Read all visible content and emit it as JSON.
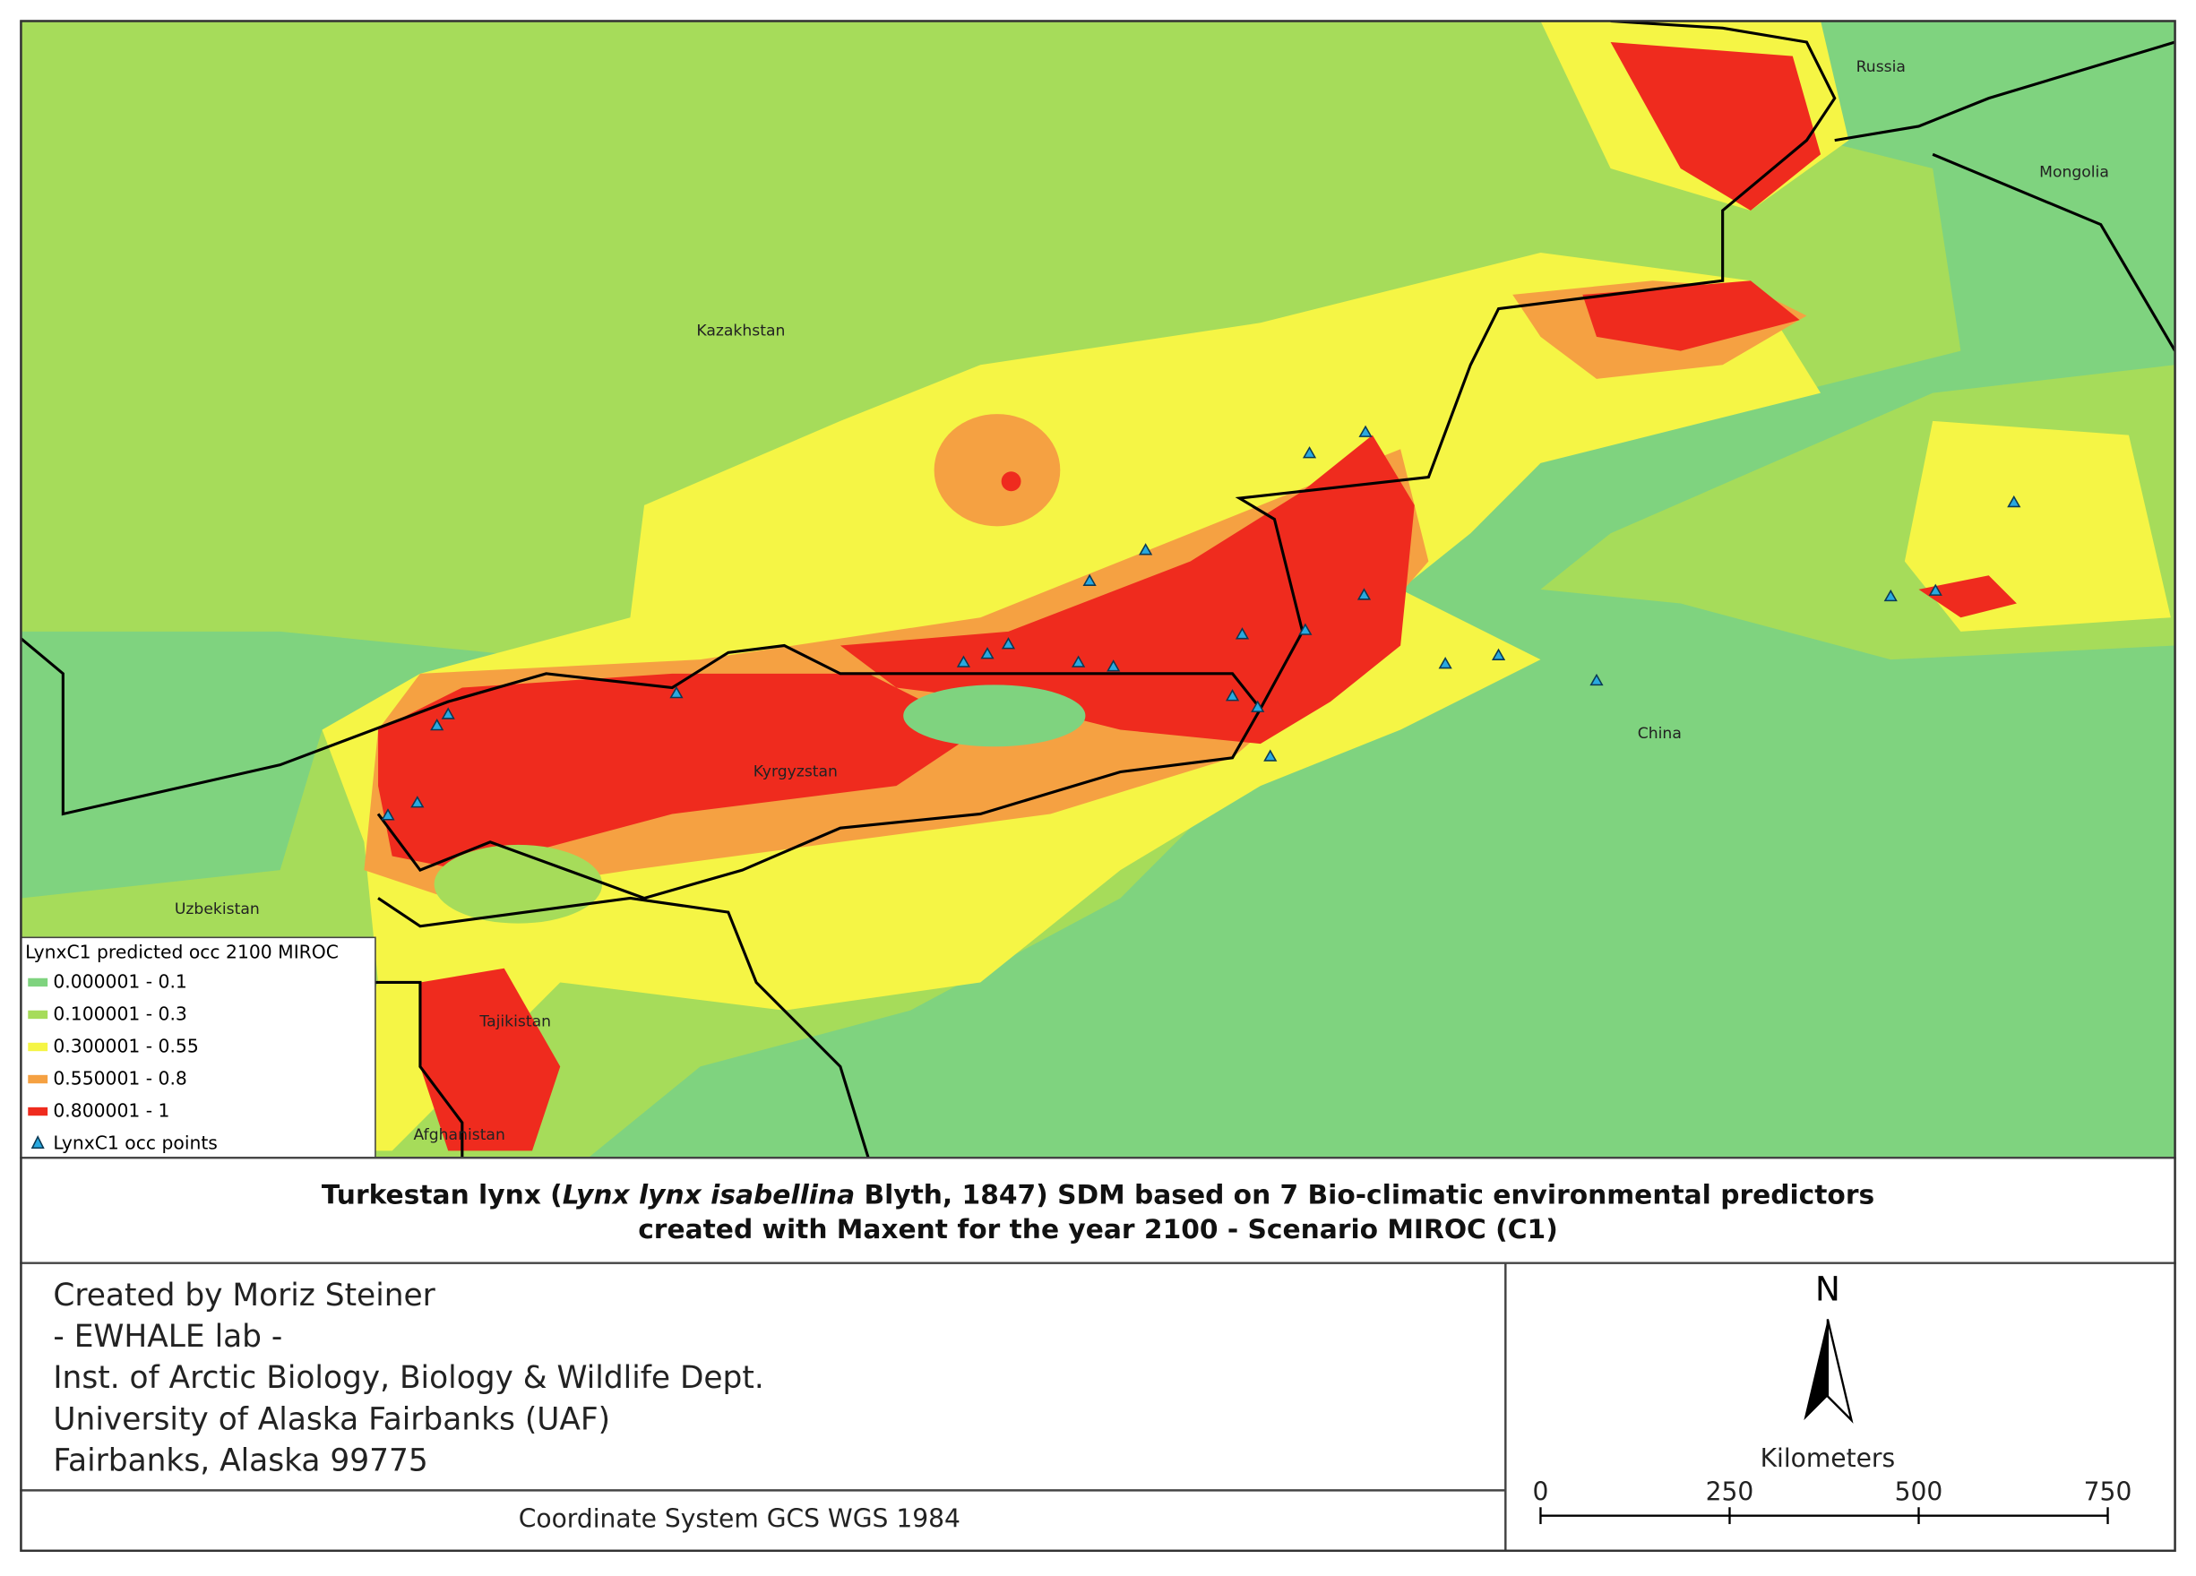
{
  "map": {
    "places": [
      "Russia",
      "Mongolia",
      "Kazakhstan",
      "China",
      "Kyrgyzstan",
      "Uzbekistan",
      "Tajikistan",
      "Afghanistan"
    ],
    "legend": {
      "title": "LynxC1 predicted occ 2100 MIROC",
      "classes": [
        {
          "label": "0.000001 - 0.1",
          "color": "#7fd37f"
        },
        {
          "label": "0.100001 - 0.3",
          "color": "#a6dc5a"
        },
        {
          "label": "0.300001 - 0.55",
          "color": "#f5f545"
        },
        {
          "label": "0.550001 - 0.8",
          "color": "#f5a142"
        },
        {
          "label": "0.800001 - 1",
          "color": "#ef2b1e"
        }
      ],
      "points_label": "LynxC1 occ points"
    }
  },
  "title": {
    "line1_before": "Turkestan lynx (",
    "line1_italic": "Lynx lynx isabellina",
    "line1_after": " Blyth, 1847) SDM based on 7 Bio-climatic environmental predictors",
    "line2": "created with Maxent for the year 2100 - Scenario MIROC (C1)"
  },
  "credits": [
    "Created by Moriz Steiner",
    "- EWHALE lab -",
    "Inst. of Arctic Biology,  Biology & Wildlife Dept.",
    "University of Alaska Fairbanks (UAF)",
    "Fairbanks, Alaska 99775"
  ],
  "coordinate_system": "Coordinate System GCS WGS 1984",
  "north": "N",
  "scale_bar": {
    "unit": "Kilometers",
    "ticks": [
      0,
      250,
      500,
      750
    ]
  }
}
